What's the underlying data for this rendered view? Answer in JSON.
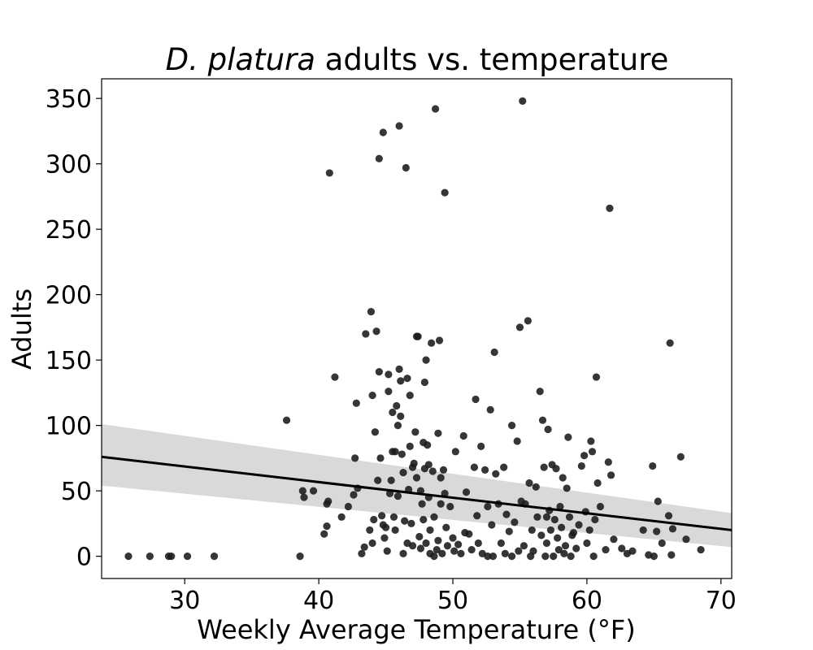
{
  "chart_data": {
    "type": "scatter",
    "title": {
      "italic": "D. platura",
      "rest": " adults vs. temperature"
    },
    "xlabel": "Weekly Average Temperature (°F)",
    "ylabel": "Adults",
    "xlim": [
      23.8,
      70.8
    ],
    "ylim": [
      -17,
      365
    ],
    "xticks": [
      30,
      40,
      50,
      60,
      70
    ],
    "yticks": [
      0,
      50,
      100,
      150,
      200,
      250,
      300,
      350
    ],
    "grid": false,
    "colors": {
      "points": "#1a1a1a",
      "line": "#000000",
      "band": "#d9d9d9"
    },
    "regression": {
      "x": [
        23.8,
        70.8
      ],
      "y": [
        76,
        20
      ],
      "ci_upper": [
        101,
        33
      ],
      "ci_lower": [
        54,
        7
      ]
    },
    "points": [
      [
        25.8,
        0
      ],
      [
        27.4,
        0
      ],
      [
        28.8,
        0
      ],
      [
        29.0,
        0
      ],
      [
        30.2,
        0
      ],
      [
        32.2,
        0
      ],
      [
        38.6,
        0
      ],
      [
        37.6,
        104
      ],
      [
        38.8,
        50
      ],
      [
        38.9,
        45
      ],
      [
        39.6,
        50
      ],
      [
        40.6,
        40
      ],
      [
        40.7,
        42
      ],
      [
        40.6,
        23
      ],
      [
        40.4,
        17
      ],
      [
        40.8,
        293
      ],
      [
        41.2,
        137
      ],
      [
        41.7,
        30
      ],
      [
        42.2,
        38
      ],
      [
        42.6,
        47
      ],
      [
        42.7,
        75
      ],
      [
        42.8,
        117
      ],
      [
        42.9,
        52
      ],
      [
        43.2,
        2
      ],
      [
        43.4,
        7
      ],
      [
        43.5,
        170
      ],
      [
        43.8,
        20
      ],
      [
        43.9,
        187
      ],
      [
        44.0,
        10
      ],
      [
        44.0,
        123
      ],
      [
        44.1,
        28
      ],
      [
        44.2,
        95
      ],
      [
        44.3,
        172
      ],
      [
        44.4,
        58
      ],
      [
        44.5,
        141
      ],
      [
        44.5,
        304
      ],
      [
        44.6,
        75
      ],
      [
        44.7,
        31
      ],
      [
        44.8,
        324
      ],
      [
        44.8,
        24
      ],
      [
        44.9,
        14
      ],
      [
        45.0,
        22
      ],
      [
        45.1,
        4
      ],
      [
        45.2,
        139
      ],
      [
        45.2,
        126
      ],
      [
        45.3,
        48
      ],
      [
        45.4,
        58
      ],
      [
        45.5,
        110
      ],
      [
        45.5,
        80
      ],
      [
        45.6,
        30
      ],
      [
        45.7,
        80
      ],
      [
        45.7,
        20
      ],
      [
        45.8,
        115
      ],
      [
        45.9,
        100
      ],
      [
        45.9,
        46
      ],
      [
        46.0,
        143
      ],
      [
        46.0,
        329
      ],
      [
        46.1,
        134
      ],
      [
        46.1,
        107
      ],
      [
        46.2,
        78
      ],
      [
        46.3,
        2
      ],
      [
        46.3,
        64
      ],
      [
        46.4,
        27
      ],
      [
        46.5,
        297
      ],
      [
        46.6,
        10
      ],
      [
        46.6,
        136
      ],
      [
        46.7,
        51
      ],
      [
        46.8,
        123
      ],
      [
        46.8,
        84
      ],
      [
        46.9,
        25
      ],
      [
        47.0,
        68
      ],
      [
        47.0,
        8
      ],
      [
        47.1,
        71
      ],
      [
        47.2,
        95
      ],
      [
        47.3,
        168
      ],
      [
        47.3,
        60
      ],
      [
        47.4,
        168
      ],
      [
        47.5,
        15
      ],
      [
        47.6,
        50
      ],
      [
        47.6,
        6
      ],
      [
        47.7,
        40
      ],
      [
        47.8,
        87
      ],
      [
        47.8,
        28
      ],
      [
        47.9,
        133
      ],
      [
        47.9,
        67
      ],
      [
        48.0,
        150
      ],
      [
        48.0,
        10
      ],
      [
        48.1,
        85
      ],
      [
        48.2,
        70
      ],
      [
        48.2,
        45
      ],
      [
        48.3,
        2
      ],
      [
        48.3,
        20
      ],
      [
        48.4,
        163
      ],
      [
        48.5,
        65
      ],
      [
        48.6,
        0
      ],
      [
        48.6,
        30
      ],
      [
        48.7,
        342
      ],
      [
        48.8,
        5
      ],
      [
        48.9,
        94
      ],
      [
        48.9,
        12
      ],
      [
        49.0,
        165
      ],
      [
        49.1,
        60
      ],
      [
        49.1,
        40
      ],
      [
        49.2,
        2
      ],
      [
        49.3,
        66
      ],
      [
        49.4,
        48
      ],
      [
        49.4,
        278
      ],
      [
        49.5,
        22
      ],
      [
        49.6,
        8
      ],
      [
        49.8,
        38
      ],
      [
        50.0,
        14
      ],
      [
        50.1,
        4
      ],
      [
        50.2,
        80
      ],
      [
        50.4,
        9
      ],
      [
        50.6,
        2
      ],
      [
        50.8,
        92
      ],
      [
        50.9,
        18
      ],
      [
        51.0,
        49
      ],
      [
        51.2,
        17
      ],
      [
        51.4,
        5
      ],
      [
        51.6,
        68
      ],
      [
        51.7,
        120
      ],
      [
        51.8,
        31
      ],
      [
        51.9,
        10
      ],
      [
        52.1,
        84
      ],
      [
        52.2,
        2
      ],
      [
        52.4,
        66
      ],
      [
        52.6,
        38
      ],
      [
        52.6,
        0
      ],
      [
        52.8,
        112
      ],
      [
        52.9,
        24
      ],
      [
        53.0,
        0
      ],
      [
        53.1,
        156
      ],
      [
        53.2,
        63
      ],
      [
        53.4,
        40
      ],
      [
        53.6,
        10
      ],
      [
        53.8,
        68
      ],
      [
        53.9,
        2
      ],
      [
        54.0,
        32
      ],
      [
        54.2,
        19
      ],
      [
        54.4,
        100
      ],
      [
        54.4,
        0
      ],
      [
        54.6,
        26
      ],
      [
        54.8,
        88
      ],
      [
        54.9,
        4
      ],
      [
        55.0,
        175
      ],
      [
        55.1,
        42
      ],
      [
        55.2,
        348
      ],
      [
        55.3,
        8
      ],
      [
        55.4,
        40
      ],
      [
        55.6,
        180
      ],
      [
        55.7,
        56
      ],
      [
        55.8,
        0
      ],
      [
        55.9,
        20
      ],
      [
        56.0,
        4
      ],
      [
        56.2,
        53
      ],
      [
        56.3,
        30
      ],
      [
        56.5,
        126
      ],
      [
        56.6,
        16
      ],
      [
        56.7,
        104
      ],
      [
        56.8,
        68
      ],
      [
        56.9,
        0
      ],
      [
        57.0,
        30
      ],
      [
        57.0,
        10
      ],
      [
        57.1,
        97
      ],
      [
        57.2,
        35
      ],
      [
        57.3,
        20
      ],
      [
        57.4,
        70
      ],
      [
        57.5,
        0
      ],
      [
        57.6,
        28
      ],
      [
        57.7,
        67
      ],
      [
        57.8,
        14
      ],
      [
        57.9,
        5
      ],
      [
        58.0,
        38
      ],
      [
        58.1,
        22
      ],
      [
        58.2,
        60
      ],
      [
        58.3,
        2
      ],
      [
        58.4,
        8
      ],
      [
        58.5,
        52
      ],
      [
        58.6,
        91
      ],
      [
        58.7,
        30
      ],
      [
        58.8,
        0
      ],
      [
        58.9,
        16
      ],
      [
        59.0,
        18
      ],
      [
        59.2,
        6
      ],
      [
        59.4,
        24
      ],
      [
        59.6,
        69
      ],
      [
        59.8,
        77
      ],
      [
        59.9,
        34
      ],
      [
        60.0,
        10
      ],
      [
        60.2,
        20
      ],
      [
        60.3,
        88
      ],
      [
        60.4,
        80
      ],
      [
        60.5,
        0
      ],
      [
        60.6,
        28
      ],
      [
        60.7,
        137
      ],
      [
        60.8,
        56
      ],
      [
        61.0,
        38
      ],
      [
        61.4,
        5
      ],
      [
        61.6,
        72
      ],
      [
        61.7,
        266
      ],
      [
        61.8,
        62
      ],
      [
        62.0,
        13
      ],
      [
        62.6,
        6
      ],
      [
        63.0,
        2
      ],
      [
        63.4,
        4
      ],
      [
        64.2,
        20
      ],
      [
        64.6,
        1
      ],
      [
        64.9,
        69
      ],
      [
        65.0,
        0
      ],
      [
        65.2,
        19
      ],
      [
        65.3,
        42
      ],
      [
        65.6,
        10
      ],
      [
        66.1,
        31
      ],
      [
        66.2,
        163
      ],
      [
        66.3,
        1
      ],
      [
        66.4,
        21
      ],
      [
        67.0,
        76
      ],
      [
        67.4,
        13
      ],
      [
        68.5,
        5
      ]
    ]
  }
}
